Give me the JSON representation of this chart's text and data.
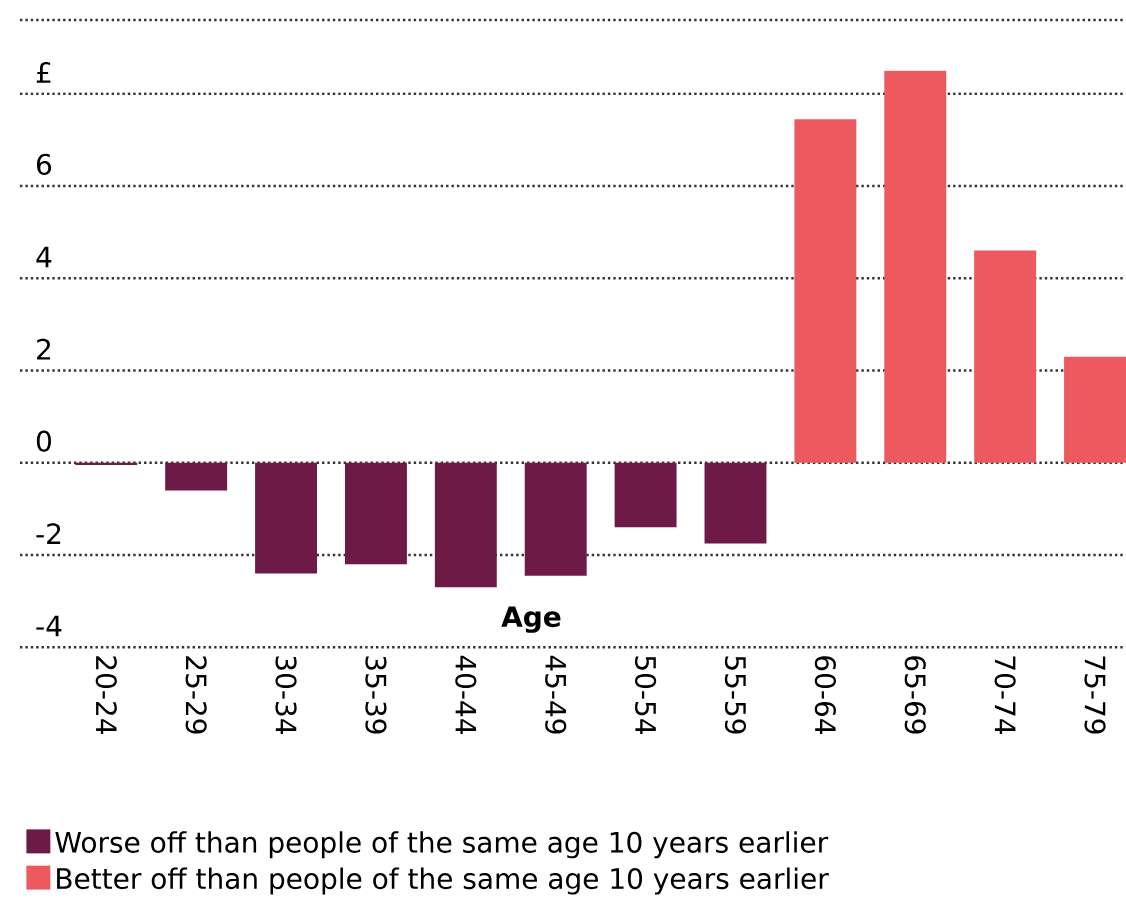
{
  "chart_data": {
    "type": "bar",
    "xlabel": "Age",
    "categories": [
      "20-24",
      "25-29",
      "30-34",
      "35-39",
      "40-44",
      "45-49",
      "50-54",
      "55-59",
      "60-64",
      "65-69",
      "70-74",
      "75-79"
    ],
    "series": [
      {
        "name": "Worse off than people of the same age 10 years earlier",
        "color": "#6e1a46",
        "values": [
          -0.05,
          -0.6,
          -2.4,
          -2.2,
          -2.7,
          -2.45,
          -1.4,
          -1.75,
          null,
          null,
          null,
          null
        ]
      },
      {
        "name": "Better off than people of the same age 10 years earlier",
        "color": "#ec5a5f",
        "values": [
          null,
          null,
          null,
          null,
          null,
          null,
          null,
          null,
          7.45,
          8.5,
          4.6,
          2.3
        ]
      }
    ],
    "ylim": [
      -4,
      9.6
    ],
    "yticks": [
      {
        "value": 8,
        "label": "£"
      },
      6,
      4,
      2,
      0,
      -2,
      -4
    ],
    "grid": "y",
    "legend": "bottom"
  }
}
